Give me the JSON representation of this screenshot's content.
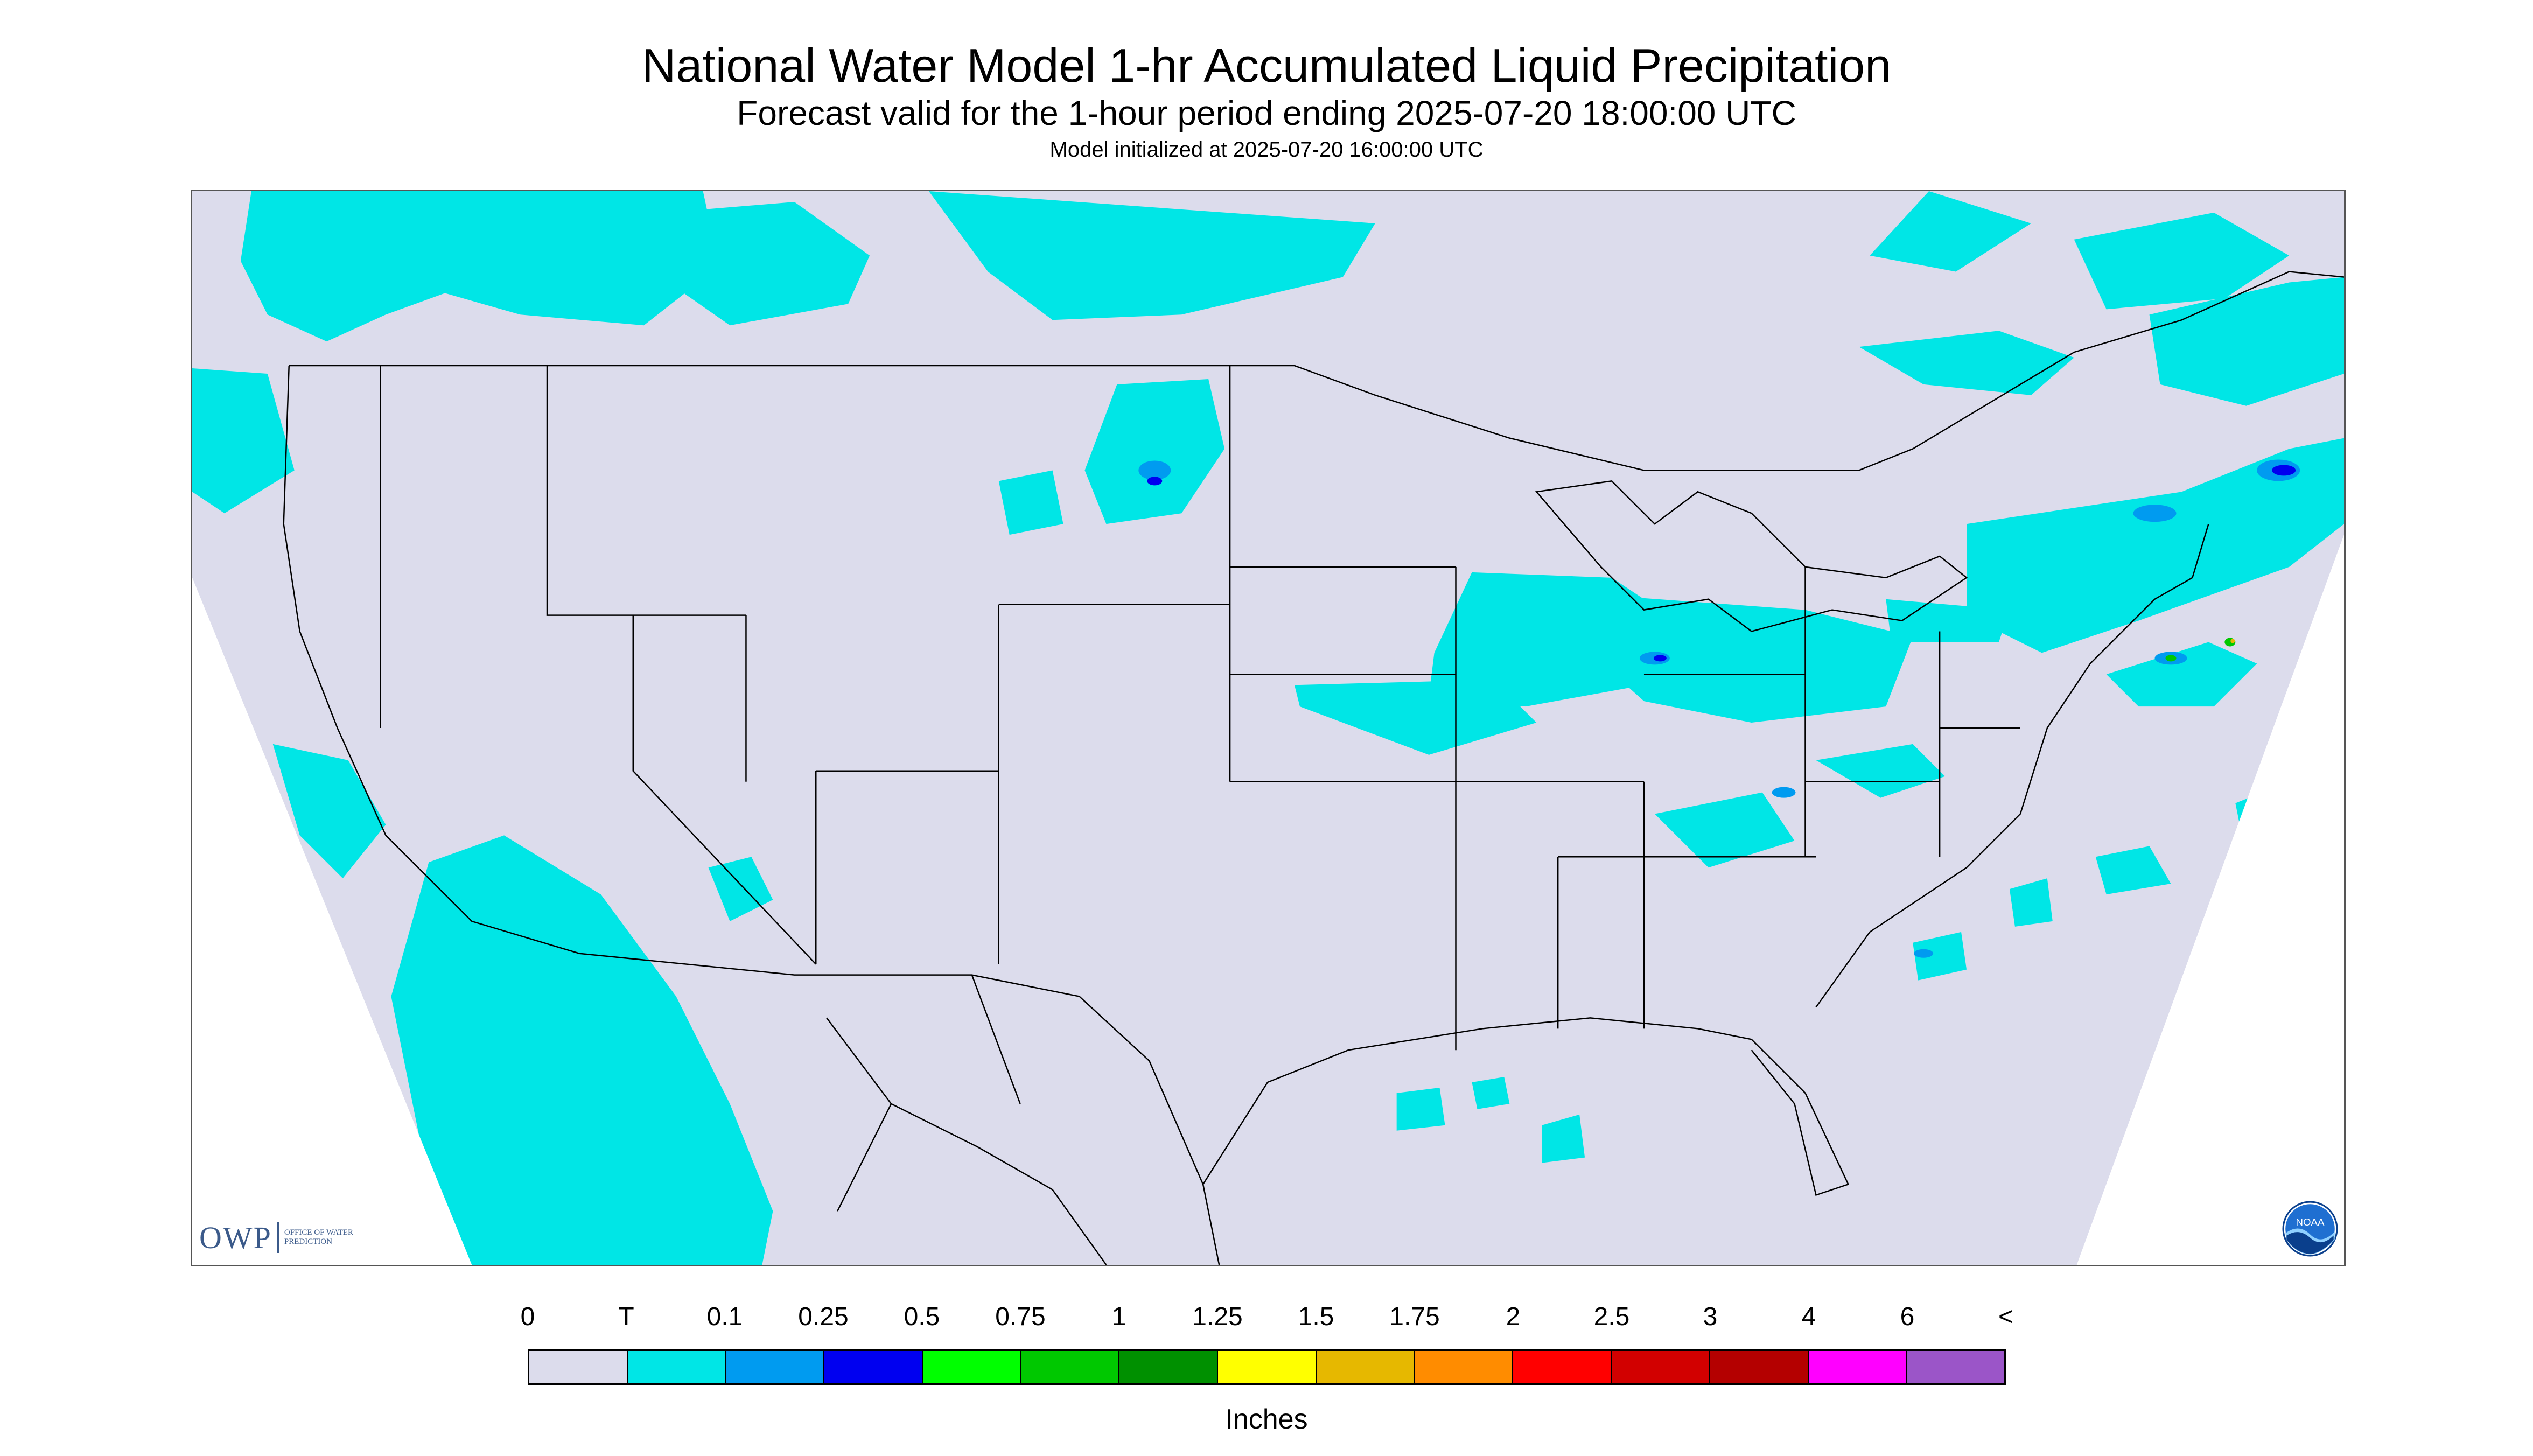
{
  "title": "National Water Model 1-hr Accumulated Liquid Precipitation",
  "subtitle": "Forecast valid for the 1-hour period ending 2025-07-20 18:00:00 UTC",
  "init": "Model initialized at 2025-07-20 16:00:00 UTC",
  "logos": {
    "owp_mark": "OWP",
    "owp_name": "OFFICE OF WATER PREDICTION",
    "noaa": "NOAA"
  },
  "legend": {
    "labels": [
      "0",
      "T",
      "0.1",
      "0.25",
      "0.5",
      "0.75",
      "1",
      "1.25",
      "1.5",
      "1.75",
      "2",
      "2.5",
      "3",
      "4",
      "6",
      "<"
    ],
    "colors": [
      "#dcdcec",
      "#00e6e6",
      "#009bf0",
      "#0000f0",
      "#00ff00",
      "#00c800",
      "#009000",
      "#ffff00",
      "#e6b800",
      "#ff8c00",
      "#ff0000",
      "#d20000",
      "#b40000",
      "#ff00ff",
      "#9b55c8"
    ],
    "units": "Inches"
  },
  "map": {
    "background": "#dcdcec",
    "outside": "#ffffff",
    "boundary_color": "#000000"
  }
}
